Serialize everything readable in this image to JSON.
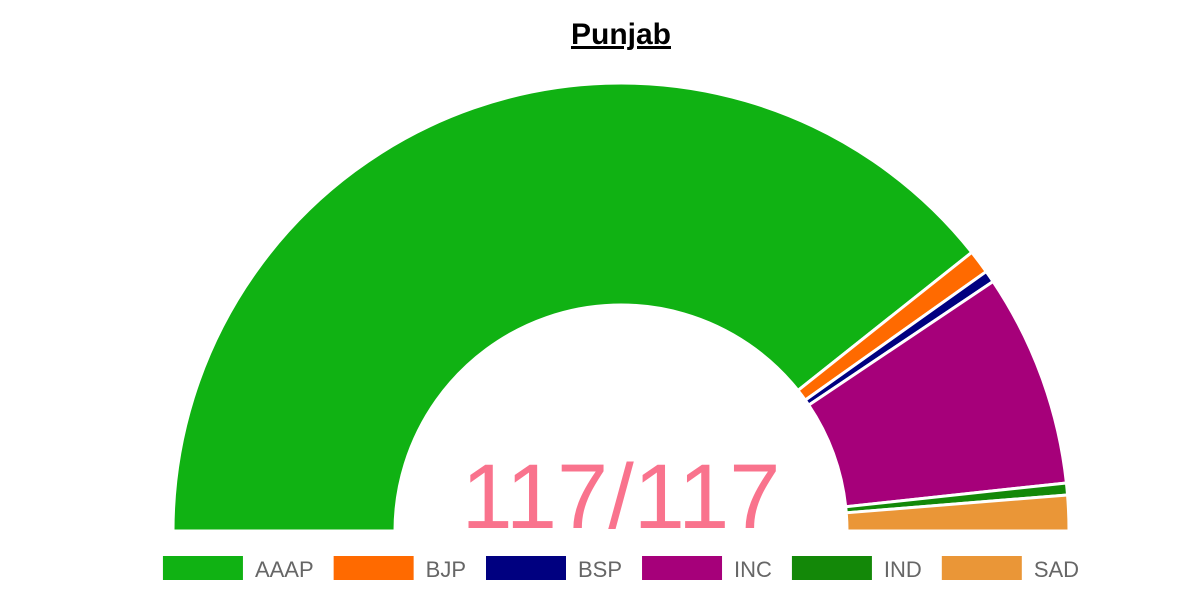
{
  "chart_data": {
    "type": "half-doughnut",
    "title": "Punjab",
    "categories": [
      "AAAP",
      "BJP",
      "BSP",
      "INC",
      "IND",
      "SAD"
    ],
    "values": [
      92,
      2,
      1,
      18,
      1,
      3
    ],
    "colors": [
      "#10b213",
      "#ff6a00",
      "#000080",
      "#a6007a",
      "#138808",
      "#ea9637"
    ],
    "center_label": "117/117",
    "center_color": "#f9738d"
  }
}
